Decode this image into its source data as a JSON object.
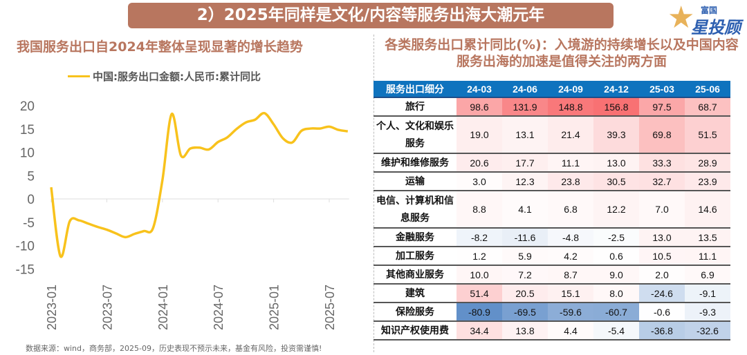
{
  "banner": {
    "title": "2）2025年同样是文化/内容等服务出海大潮元年"
  },
  "logo": {
    "top_text": "富国",
    "main_text": "星投顾"
  },
  "left": {
    "subtitle": "我国服务出口自2024年整体呈现显著的增长趋势"
  },
  "right": {
    "subtitle": "各类服务出口累计同比(%)：入境游的持续增长以及中国内容服务出海的加速是值得关注的两方面"
  },
  "chart_data": {
    "type": "line",
    "legend": "top",
    "grid": false,
    "ylim": [
      -15,
      20
    ],
    "yticks": [
      "20",
      "15",
      "10",
      "5",
      "0",
      "-5",
      "-10",
      "-15"
    ],
    "xticks": [
      "2023-01",
      "2023-07",
      "2024-01",
      "2024-07",
      "2025-01",
      "2025-07"
    ],
    "series": [
      {
        "name": "中国:服务出口金额:人民币:累计同比",
        "color": "#f8c21c",
        "x": [
          "2023-01",
          "2023-02",
          "2023-03",
          "2023-04",
          "2023-05",
          "2023-06",
          "2023-07",
          "2023-08",
          "2023-09",
          "2023-10",
          "2023-11",
          "2023-12",
          "2024-01",
          "2024-02",
          "2024-03",
          "2024-04",
          "2024-05",
          "2024-06",
          "2024-07",
          "2024-08",
          "2024-09",
          "2024-10",
          "2024-11",
          "2024-12",
          "2025-01",
          "2025-02",
          "2025-03",
          "2025-04",
          "2025-05",
          "2025-06",
          "2025-07",
          "2025-08",
          "2025-09"
        ],
        "values": [
          2.5,
          -12.3,
          -4.8,
          -4.6,
          -5.3,
          -6.0,
          -6.6,
          -7.4,
          -8.2,
          -7.5,
          -6.9,
          -6.2,
          4.0,
          18.2,
          9.3,
          10.8,
          11.0,
          10.6,
          12.2,
          13.2,
          15.0,
          16.4,
          17.0,
          18.4,
          16.0,
          13.0,
          12.1,
          14.6,
          15.1,
          15.1,
          15.5,
          14.8,
          14.5
        ]
      }
    ]
  },
  "table": {
    "heat_colors": {
      "positive": "#f8696b",
      "negative": "#5a8ac6"
    },
    "headers": [
      "服务出口细分",
      "24-03",
      "24-06",
      "24-09",
      "24-12",
      "25-03",
      "25-06"
    ],
    "rows": [
      {
        "cat": "旅行",
        "vals": [
          "98.6",
          "131.9",
          "148.8",
          "156.8",
          "97.5",
          "68.7"
        ]
      },
      {
        "cat": "个人、文化和娱乐服务",
        "vals": [
          "19.0",
          "13.1",
          "21.4",
          "39.3",
          "69.8",
          "51.5"
        ],
        "tall": true
      },
      {
        "cat": "维护和维修服务",
        "vals": [
          "20.6",
          "17.7",
          "11.1",
          "13.0",
          "33.3",
          "28.9"
        ]
      },
      {
        "cat": "运输",
        "vals": [
          "3.0",
          "12.3",
          "23.8",
          "30.5",
          "32.7",
          "23.9"
        ]
      },
      {
        "cat": "电信、计算机和信息服务",
        "vals": [
          "8.8",
          "4.1",
          "6.8",
          "12.2",
          "7.0",
          "14.6"
        ],
        "tall": true
      },
      {
        "cat": "金融服务",
        "vals": [
          "-8.2",
          "-11.6",
          "-4.8",
          "-2.5",
          "13.0",
          "13.5"
        ]
      },
      {
        "cat": "加工服务",
        "vals": [
          "1.2",
          "5.9",
          "4.2",
          "0.6",
          "10.5",
          "11.1"
        ]
      },
      {
        "cat": "其他商业服务",
        "vals": [
          "10.0",
          "7.2",
          "8.7",
          "9.0",
          "2.0",
          "6.9"
        ]
      },
      {
        "cat": "建筑",
        "vals": [
          "51.4",
          "20.5",
          "15.1",
          "8.0",
          "-24.6",
          "-9.1"
        ]
      },
      {
        "cat": "保险服务",
        "vals": [
          "-80.9",
          "-69.5",
          "-59.6",
          "-60.7",
          "-0.6",
          "-9.3"
        ]
      },
      {
        "cat": "知识产权使用费",
        "vals": [
          "34.4",
          "13.8",
          "4.4",
          "-5.4",
          "-36.8",
          "-32.6"
        ]
      }
    ]
  },
  "footer": {
    "source": "数据来源：wind，商务部，2025-09，历史表现不预示未来，基金有风险，投资需谨慎!"
  }
}
